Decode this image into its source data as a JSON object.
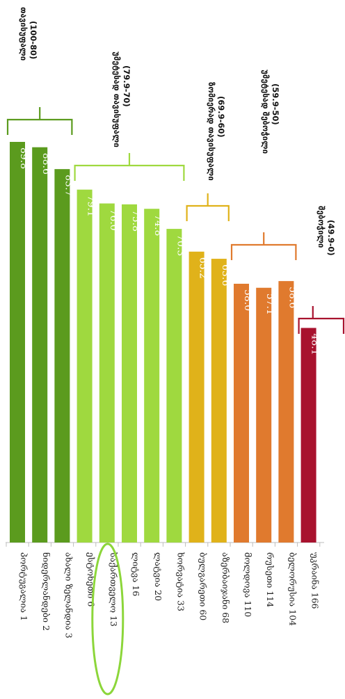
{
  "chart_data": {
    "type": "bar",
    "orientation": "vertical bars, image rotated (labels read bottom-to-top)",
    "grid": false,
    "categories": [
      "პორტუგალია 1",
      "ნიდერლანდები 2",
      "ახალი ზელანდია 3",
      "ესტონეთი 6",
      "საქართველო 13",
      "ლიტვა 16",
      "ლატვია 20",
      "ხორვატია 33",
      "ბულგარეთი 60",
      "აზერბაიჯანი 68",
      "მოლდოვა 110",
      "რუსეთი 114",
      "ბელორუსია 104",
      "უკრაინა 166"
    ],
    "values": [
      89.8,
      88.6,
      83.7,
      79.1,
      76.0,
      75.8,
      74.8,
      70.3,
      65.2,
      63.6,
      58.0,
      57.1,
      58.6,
      48.1
    ],
    "value_labels": [
      "89.8",
      "88.6",
      "83.7",
      "79.1",
      "76.0",
      "75.8",
      "74.8",
      "70.3",
      "65.2",
      "63.6",
      "58.0",
      "57.1",
      "58.6",
      "48.1"
    ],
    "ylim": [
      0,
      100
    ],
    "groups": [
      {
        "name": "თავისუფალი",
        "range": "(100-80)",
        "start": 0,
        "end": 2,
        "color": "#5b9b1e"
      },
      {
        "name": "უმეტესად თავისუფალი",
        "range": "(79.9-70)",
        "start": 3,
        "end": 7,
        "color": "#9fd93f"
      },
      {
        "name": "ზომიერად თავისუფალი",
        "range": "(69.9-60)",
        "start": 8,
        "end": 9,
        "color": "#e0b21a"
      },
      {
        "name": "უმეტესად შებოჭილი",
        "range": "(59.9-50)",
        "start": 10,
        "end": 12,
        "color": "#e07a2e"
      },
      {
        "name": "შებოჭილი",
        "range": "(49.9-0)",
        "start": 13,
        "end": 13,
        "color": "#a8122e"
      }
    ],
    "highlight": {
      "category": "საქართველო 13",
      "color": "#8cd63a"
    }
  }
}
